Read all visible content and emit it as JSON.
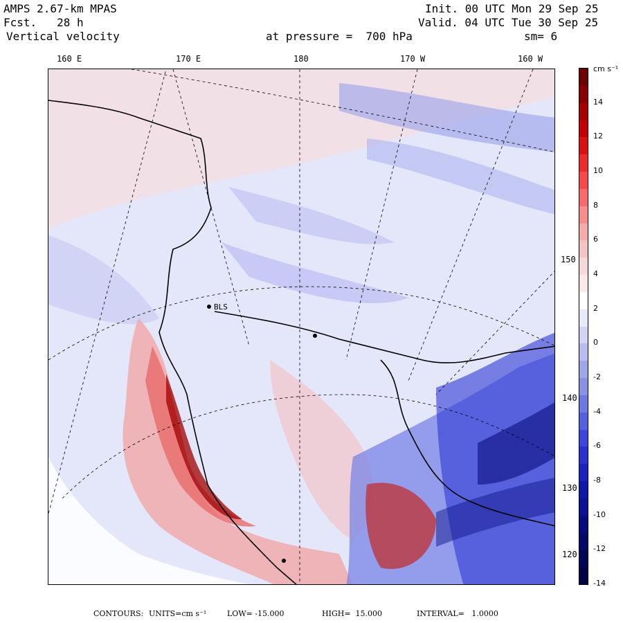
{
  "header": {
    "model": "AMPS 2.67-km MPAS",
    "forecast": "Fcst.   28 h",
    "field": "Vertical velocity",
    "init": "Init. 00 UTC Mon 29 Sep 25",
    "valid": "Valid. 04 UTC Tue 30 Sep 25",
    "pressure_level": "at pressure =  700 hPa",
    "smoothing": "sm= 6"
  },
  "top_longitudes": [
    "160 E",
    "170 E",
    "180",
    "170 W",
    "160 W"
  ],
  "right_longitudes": [
    "150 W",
    "140 W",
    "130 W",
    "120 W"
  ],
  "station_label": "BLS",
  "colorbar": {
    "unit_label": "cm s⁻¹",
    "tick_labels": [
      "14",
      "12",
      "10",
      "8",
      "6",
      "4",
      "2",
      "0",
      "-2",
      "-4",
      "-6",
      "-8",
      "-10",
      "-12",
      "-14"
    ],
    "colors_top_to_bottom": [
      "#6e0000",
      "#8a0000",
      "#a80000",
      "#c40000",
      "#dc1010",
      "#ee2a2a",
      "#f84848",
      "#fb6a6a",
      "#fa8c8c",
      "#f6aaaa",
      "#f4c4c4",
      "#f6d8d8",
      "#fbe8e8",
      "#ffffff",
      "#e8e8fb",
      "#d2d4f6",
      "#b8bcf0",
      "#a0a6ec",
      "#8890e8",
      "#6e78e4",
      "#5560e0",
      "#3c46dc",
      "#2832d0",
      "#1a22c0",
      "#1018aa",
      "#0a1296",
      "#060c80",
      "#04086a",
      "#020658",
      "#010446"
    ]
  },
  "footer": {
    "contours": "CONTOURS:",
    "units": "UNITS=cm s⁻¹",
    "low": "LOW= -15.000",
    "high": "HIGH=  15.000",
    "interval": "INTERVAL=   1.0000"
  }
}
